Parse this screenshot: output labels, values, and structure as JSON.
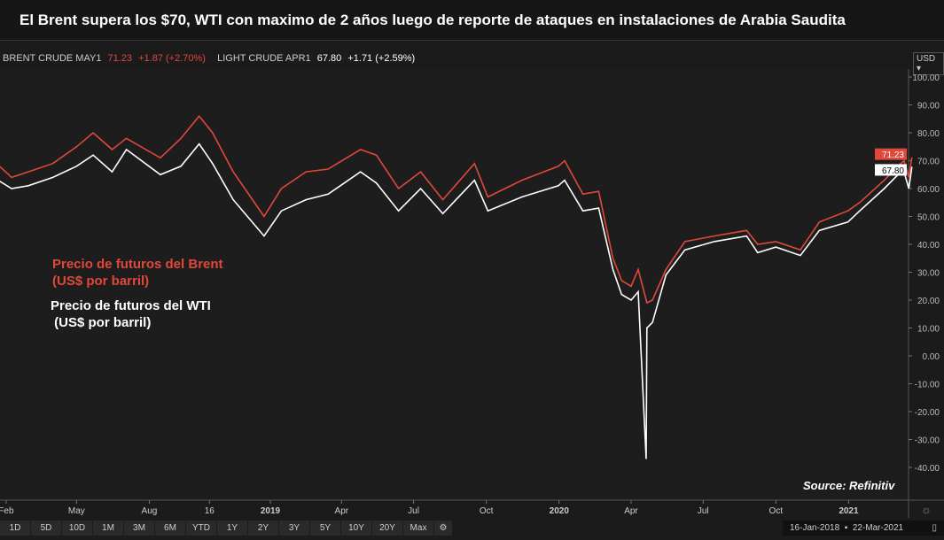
{
  "title": "El Brent supera los $70, WTI con maximo de 2 años luego de reporte de ataques en instalaciones de Arabia Saudita",
  "legend": {
    "brent_name": "BRENT CRUDE MAY1",
    "brent_last": "71.23",
    "brent_change": "+1.87 (+2.70%)",
    "wti_name": "LIGHT CRUDE APR1",
    "wti_last": "67.80",
    "wti_change": "+1.71 (+2.59%)"
  },
  "currency": "USD",
  "annotations": {
    "brent_line1": "Precio de futuros del Brent",
    "brent_line2": "(US$ por barril)",
    "wti_line1": "Precio de futuros del WTI",
    "wti_line2": " (US$ por barril)",
    "source": "Source: Refinitiv"
  },
  "buttons": [
    "1D",
    "5D",
    "10D",
    "1M",
    "3M",
    "6M",
    "YTD",
    "1Y",
    "2Y",
    "3Y",
    "5Y",
    "10Y",
    "20Y",
    "Max"
  ],
  "date_range": {
    "start": "16-Jan-2018",
    "end": "22-Mar-2021"
  },
  "colors": {
    "brent": "#e0483a",
    "wti": "#ffffff",
    "background": "#1b1b1b"
  },
  "chart_data": {
    "type": "line",
    "ylim": [
      -40,
      100
    ],
    "yticks": [
      "100.00",
      "90.00",
      "80.00",
      "70.00",
      "60.00",
      "50.00",
      "40.00",
      "30.00",
      "20.00",
      "10.00",
      "0.00",
      "-10.00",
      "-20.00",
      "-30.00",
      "-40.00"
    ],
    "xticks": [
      {
        "label": "Feb",
        "date": "2018-02-01"
      },
      {
        "label": "May",
        "date": "2018-05-01"
      },
      {
        "label": "Aug",
        "date": "2018-08-01"
      },
      {
        "label": "16",
        "date": "2018-10-16"
      },
      {
        "label": "2019",
        "date": "2019-01-01"
      },
      {
        "label": "Apr",
        "date": "2019-04-01"
      },
      {
        "label": "Jul",
        "date": "2019-07-01"
      },
      {
        "label": "Oct",
        "date": "2019-10-01"
      },
      {
        "label": "2020",
        "date": "2020-01-01"
      },
      {
        "label": "Apr",
        "date": "2020-04-01"
      },
      {
        "label": "Jul",
        "date": "2020-07-01"
      },
      {
        "label": "Oct",
        "date": "2020-10-01"
      },
      {
        "label": "2021",
        "date": "2021-01-01"
      }
    ],
    "x": [
      "2018-01-16",
      "2018-02-08",
      "2018-03-01",
      "2018-04-01",
      "2018-05-01",
      "2018-05-22",
      "2018-06-15",
      "2018-07-03",
      "2018-08-15",
      "2018-09-10",
      "2018-10-03",
      "2018-10-20",
      "2018-11-15",
      "2018-12-24",
      "2019-01-15",
      "2019-02-15",
      "2019-03-15",
      "2019-04-25",
      "2019-05-15",
      "2019-06-12",
      "2019-07-10",
      "2019-08-07",
      "2019-09-16",
      "2019-10-03",
      "2019-11-15",
      "2019-12-31",
      "2020-01-08",
      "2020-01-31",
      "2020-02-20",
      "2020-03-09",
      "2020-03-20",
      "2020-04-01",
      "2020-04-10",
      "2020-04-20",
      "2020-04-21",
      "2020-04-28",
      "2020-05-15",
      "2020-06-08",
      "2020-07-15",
      "2020-08-25",
      "2020-09-08",
      "2020-10-01",
      "2020-11-01",
      "2020-11-25",
      "2020-12-31",
      "2021-01-15",
      "2021-02-15",
      "2021-03-08",
      "2021-03-12",
      "2021-03-18",
      "2021-03-22"
    ],
    "series": [
      {
        "name": "BRENT CRUDE MAY1",
        "color": "#e0483a",
        "values": [
          70,
          64,
          66,
          69,
          75,
          80,
          74,
          78,
          71,
          78,
          86,
          80,
          66,
          50,
          60,
          66,
          67,
          74,
          72,
          60,
          66,
          56,
          69,
          57,
          63,
          68,
          70,
          58,
          59,
          35,
          27,
          25,
          31,
          20,
          19,
          20,
          31,
          41,
          43,
          45,
          40,
          41,
          38,
          48,
          52,
          55,
          63,
          69,
          70,
          64,
          71.23
        ]
      },
      {
        "name": "LIGHT CRUDE APR1",
        "color": "#ffffff",
        "values": [
          64,
          60,
          61,
          64,
          68,
          72,
          66,
          74,
          65,
          68,
          76,
          69,
          56,
          43,
          52,
          56,
          58,
          66,
          62,
          52,
          60,
          51,
          63,
          52,
          57,
          61,
          63,
          52,
          53,
          31,
          22,
          20,
          23,
          -37,
          10,
          12,
          29,
          38,
          41,
          43,
          37,
          39,
          36,
          45,
          48,
          52,
          60,
          66,
          66,
          60,
          67.8
        ]
      }
    ],
    "last_labels": [
      "71.23",
      "67.80"
    ]
  }
}
